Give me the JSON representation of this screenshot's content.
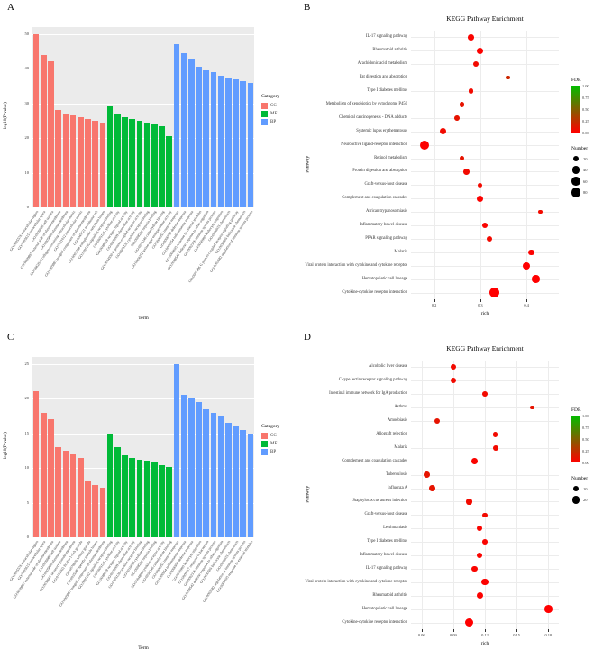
{
  "figure": {
    "panels": [
      {
        "label": "A"
      },
      {
        "label": "B"
      },
      {
        "label": "C"
      },
      {
        "label": "D"
      }
    ]
  },
  "chart_data": [
    {
      "type": "bar",
      "panel": "A",
      "title": "",
      "xlabel": "Term",
      "ylabel": "-log10(P-value)",
      "ylim": [
        0,
        52
      ],
      "yticks": [
        0,
        10,
        20,
        30,
        40,
        50
      ],
      "legend": {
        "title": "Category",
        "items": [
          {
            "label": "CC",
            "color": "#F8766D"
          },
          {
            "label": "MF",
            "color": "#00BA38"
          },
          {
            "label": "BP",
            "color": "#619CFF"
          }
        ]
      },
      "categories": [
        "GO:0005576 extracellular region",
        "GO:0005615 extracellular space",
        "GO:0009986 cell surface",
        "GO:0009897 external side of plasma membrane",
        "GO:0005886 plasma membrane",
        "GO:0062023 collagen-containing extracellular matrix",
        "GO:0031012 extracellular matrix",
        "GO:0005887 integral component of plasma membrane",
        "GO:0045121 membrane raft",
        "GO:0005788 endoplasmic reticulum lumen",
        "GO:0005102 signaling receptor binding",
        "GO:0005125 cytokine activity",
        "GO:0048018 receptor ligand activity",
        "GO:0008009 chemokine activity",
        "GO:0004930 G protein-coupled receptor activity",
        "GO:0005126 cytokine receptor binding",
        "GO:0008201 heparin binding",
        "GO:0030246 carbohydrate binding",
        "GO:0004252 serine-type endopeptidase activity",
        "GO:0006955 immune response",
        "GO:0006952 defense response",
        "GO:0006954 inflammatory response",
        "GO:0009605 response to external stimulus",
        "GO:0098542 defense response to other organism",
        "GO:0002376 immune system process",
        "GO:0050900 leukocyte migration",
        "GO:0006935 chemotaxis",
        "GO:0007186 G protein-coupled receptor signaling pathway",
        "GO:0030595 leukocyte chemotaxis",
        "GO:0002682 regulation of immune system process"
      ],
      "groups": [
        "CC",
        "CC",
        "CC",
        "CC",
        "CC",
        "CC",
        "CC",
        "CC",
        "CC",
        "CC",
        "MF",
        "MF",
        "MF",
        "MF",
        "MF",
        "MF",
        "MF",
        "MF",
        "MF",
        "BP",
        "BP",
        "BP",
        "BP",
        "BP",
        "BP",
        "BP",
        "BP",
        "BP",
        "BP",
        "BP"
      ],
      "values": [
        50,
        44,
        42,
        28,
        27,
        26.5,
        26,
        25.5,
        25,
        24.5,
        29,
        27,
        26,
        25.5,
        25,
        24.5,
        24,
        23.5,
        20.5,
        47,
        44.5,
        43,
        40.5,
        39.5,
        39,
        38,
        37.5,
        37,
        36.5,
        36
      ]
    },
    {
      "type": "scatter",
      "panel": "B",
      "title": "KEGG Pathway Enrichment",
      "xlabel": "rich",
      "ylabel": "Pathway",
      "xlim": [
        0.15,
        0.47
      ],
      "xticks": [
        0.2,
        0.3,
        0.4
      ],
      "xtick_labels": [
        "0.2",
        "0.3",
        "0.4"
      ],
      "fdr_legend": {
        "title": "FDR",
        "ticks": [
          "1.00",
          "0.75",
          "0.50",
          "0.25",
          "0.00"
        ]
      },
      "number_legend": {
        "title": "Number",
        "values": [
          20,
          40,
          60,
          80
        ]
      },
      "size_domain": [
        10,
        90
      ],
      "size_range": [
        1.6,
        5.6
      ],
      "points": [
        {
          "pathway": "IL-17 signaling pathway",
          "rich": 0.28,
          "number": 25,
          "fdr": 0.02
        },
        {
          "pathway": "Rheumatoid arthritis",
          "rich": 0.3,
          "number": 28,
          "fdr": 0.01
        },
        {
          "pathway": "Arachidonic acid metabolism",
          "rich": 0.29,
          "number": 20,
          "fdr": 0.05
        },
        {
          "pathway": "Fat digestion and absorption",
          "rich": 0.36,
          "number": 12,
          "fdr": 0.2
        },
        {
          "pathway": "Type I diabetes mellitus",
          "rich": 0.28,
          "number": 16,
          "fdr": 0.05
        },
        {
          "pathway": "Metabolism of xenobiotics by cytochrome P450",
          "rich": 0.26,
          "number": 18,
          "fdr": 0.1
        },
        {
          "pathway": "Chemical carcinogenesis - DNA adducts",
          "rich": 0.25,
          "number": 18,
          "fdr": 0.1
        },
        {
          "pathway": "Systemic lupus erythematosus",
          "rich": 0.22,
          "number": 30,
          "fdr": 0.05
        },
        {
          "pathway": "Neuroactive ligand-receptor interaction",
          "rich": 0.18,
          "number": 70,
          "fdr": 0.01
        },
        {
          "pathway": "Retinol metabolism",
          "rich": 0.26,
          "number": 18,
          "fdr": 0.1
        },
        {
          "pathway": "Protein digestion and absorption",
          "rich": 0.27,
          "number": 25,
          "fdr": 0.05
        },
        {
          "pathway": "Graft-versus-host disease",
          "rich": 0.3,
          "number": 14,
          "fdr": 0.05
        },
        {
          "pathway": "Complement and coagulation cascades",
          "rich": 0.3,
          "number": 30,
          "fdr": 0.01
        },
        {
          "pathway": "African trypanosomiasis",
          "rich": 0.43,
          "number": 12,
          "fdr": 0.05
        },
        {
          "pathway": "Inflammatory bowel disease",
          "rich": 0.31,
          "number": 25,
          "fdr": 0.02
        },
        {
          "pathway": "PPAR signaling pathway",
          "rich": 0.32,
          "number": 22,
          "fdr": 0.05
        },
        {
          "pathway": "Malaria",
          "rich": 0.41,
          "number": 25,
          "fdr": 0.01
        },
        {
          "pathway": "Viral protein interaction with cytokine and cytokine receptor",
          "rich": 0.4,
          "number": 45,
          "fdr": 0.0
        },
        {
          "pathway": "Hematopoietic cell lineage",
          "rich": 0.42,
          "number": 45,
          "fdr": 0.0
        },
        {
          "pathway": "Cytokine-cytokine receptor interaction",
          "rich": 0.33,
          "number": 90,
          "fdr": 0.0
        }
      ]
    },
    {
      "type": "bar",
      "panel": "C",
      "title": "",
      "xlabel": "Term",
      "ylabel": "-log10(P-value)",
      "ylim": [
        0,
        26
      ],
      "yticks": [
        0,
        5,
        10,
        15,
        20,
        25
      ],
      "legend": {
        "title": "Category",
        "items": [
          {
            "label": "CC",
            "color": "#F8766D"
          },
          {
            "label": "MF",
            "color": "#00BA38"
          },
          {
            "label": "BP",
            "color": "#619CFF"
          }
        ]
      },
      "categories": [
        "GO:0005576 extracellular region",
        "GO:0005615 extracellular space",
        "GO:0009897 external side of plasma membrane",
        "GO:0009986 cell surface",
        "GO:0005886 plasma membrane",
        "GO:0030667 secretory granule membrane",
        "GO:0101002 ficolin-1-rich granule",
        "GO:0070820 tertiary granule",
        "GO:0035580 specific granule lumen",
        "GO:0005887 integral component of plasma membrane",
        "GO:0005102 signaling receptor binding",
        "GO:0005125 cytokine activity",
        "GO:0048018 receptor ligand activity",
        "GO:0008009 chemokine activity",
        "GO:0005126 cytokine receptor binding",
        "GO:0019955 cytokine binding",
        "GO:0008201 heparin binding",
        "GO:0004896 cytokine receptor activity",
        "GO:0030246 carbohydrate binding",
        "GO:0006955 immune response",
        "GO:0006954 inflammatory response",
        "GO:0006952 defense response",
        "GO:0050900 leukocyte migration",
        "GO:0009617 response to bacterium",
        "GO:0002376 immune system process",
        "GO:0098542 defense response to other organism",
        "GO:0030595 leukocyte chemotaxis",
        "GO:0006935 chemotaxis",
        "GO:0002682 regulation of immune system process",
        "GO:0009605 response to external stimulus"
      ],
      "groups": [
        "CC",
        "CC",
        "CC",
        "CC",
        "CC",
        "CC",
        "CC",
        "CC",
        "CC",
        "CC",
        "MF",
        "MF",
        "MF",
        "MF",
        "MF",
        "MF",
        "MF",
        "MF",
        "MF",
        "BP",
        "BP",
        "BP",
        "BP",
        "BP",
        "BP",
        "BP",
        "BP",
        "BP",
        "BP",
        "BP"
      ],
      "values": [
        21,
        18,
        17,
        13,
        12.5,
        12,
        11.5,
        8,
        7.5,
        7.2,
        15,
        13,
        11.8,
        11.4,
        11.2,
        11,
        10.8,
        10.4,
        10.2,
        25,
        20.5,
        20,
        19.5,
        18.5,
        18,
        17.5,
        16.5,
        16,
        15.5,
        15
      ]
    },
    {
      "type": "scatter",
      "panel": "D",
      "title": "KEGG Pathway Enrichment",
      "xlabel": "rich",
      "ylabel": "Pathway",
      "xlim": [
        0.05,
        0.19
      ],
      "xticks": [
        0.06,
        0.09,
        0.12,
        0.15,
        0.18
      ],
      "xtick_labels": [
        "0.06",
        "0.09",
        "0.12",
        "0.15",
        "0.18"
      ],
      "fdr_legend": {
        "title": "FDR",
        "ticks": [
          "1.00",
          "0.75",
          "0.50",
          "0.25",
          "0.00"
        ]
      },
      "number_legend": {
        "title": "Number",
        "values": [
          10,
          20
        ]
      },
      "size_domain": [
        4,
        24
      ],
      "size_range": [
        1.6,
        4.8
      ],
      "points": [
        {
          "pathway": "Alcoholic liver disease",
          "rich": 0.09,
          "number": 8,
          "fdr": 0.05
        },
        {
          "pathway": "C-type lectin receptor signaling pathway",
          "rich": 0.09,
          "number": 8,
          "fdr": 0.05
        },
        {
          "pathway": "Intestinal immune network for IgA production",
          "rich": 0.12,
          "number": 7,
          "fdr": 0.05
        },
        {
          "pathway": "Asthma",
          "rich": 0.165,
          "number": 5,
          "fdr": 0.1
        },
        {
          "pathway": "Amoebiasis",
          "rich": 0.075,
          "number": 8,
          "fdr": 0.1
        },
        {
          "pathway": "Allograft rejection",
          "rich": 0.13,
          "number": 6,
          "fdr": 0.05
        },
        {
          "pathway": "Malaria",
          "rich": 0.13,
          "number": 7,
          "fdr": 0.05
        },
        {
          "pathway": "Complement and coagulation cascades",
          "rich": 0.11,
          "number": 10,
          "fdr": 0.02
        },
        {
          "pathway": "Tuberculosis",
          "rich": 0.065,
          "number": 10,
          "fdr": 0.1
        },
        {
          "pathway": "Influenza A",
          "rich": 0.07,
          "number": 10,
          "fdr": 0.1
        },
        {
          "pathway": "Staphylococcus aureus infection",
          "rich": 0.105,
          "number": 9,
          "fdr": 0.05
        },
        {
          "pathway": "Graft-versus-host disease",
          "rich": 0.12,
          "number": 6,
          "fdr": 0.05
        },
        {
          "pathway": "Leishmaniasis",
          "rich": 0.115,
          "number": 8,
          "fdr": 0.02
        },
        {
          "pathway": "Type I diabetes mellitus",
          "rich": 0.12,
          "number": 7,
          "fdr": 0.02
        },
        {
          "pathway": "Inflammatory bowel disease",
          "rich": 0.115,
          "number": 9,
          "fdr": 0.02
        },
        {
          "pathway": "IL-17 signaling pathway",
          "rich": 0.11,
          "number": 10,
          "fdr": 0.02
        },
        {
          "pathway": "Viral protein interaction with cytokine and cytokine receptor",
          "rich": 0.12,
          "number": 12,
          "fdr": 0.01
        },
        {
          "pathway": "Rheumatoid arthritis",
          "rich": 0.115,
          "number": 11,
          "fdr": 0.01
        },
        {
          "pathway": "Hematopoietic cell lineage",
          "rich": 0.18,
          "number": 18,
          "fdr": 0.0
        },
        {
          "pathway": "Cytokine-cytokine receptor interaction",
          "rich": 0.105,
          "number": 22,
          "fdr": 0.0
        }
      ]
    }
  ]
}
